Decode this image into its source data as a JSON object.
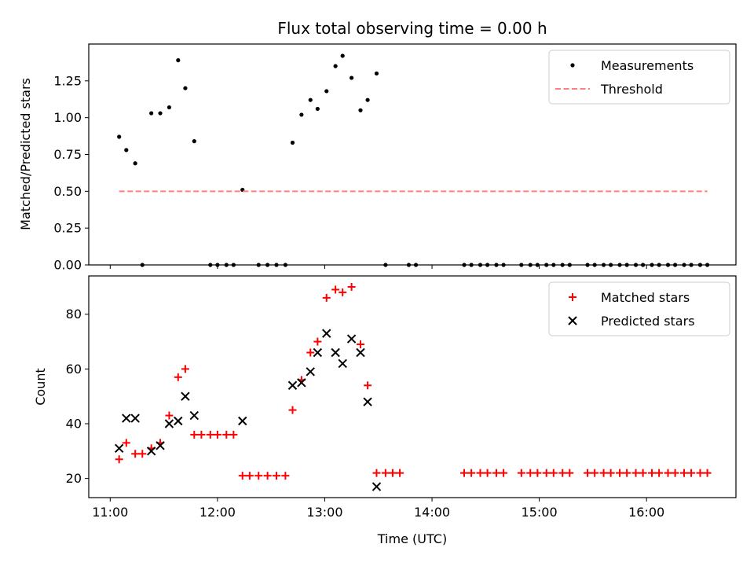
{
  "chart_data": [
    {
      "type": "scatter",
      "title": "Flux total observing time = 0.00 h",
      "xlabel": "",
      "ylabel": "Matched/Predicted stars",
      "xlim": [
        "10:48",
        "16:50"
      ],
      "ylim": [
        0,
        1.5
      ],
      "x_ticks": [
        "11:00",
        "12:00",
        "13:00",
        "14:00",
        "15:00",
        "16:00"
      ],
      "y_ticks": [
        "0.00",
        "0.25",
        "0.50",
        "0.75",
        "1.00",
        "1.25"
      ],
      "legend_position": "top-right",
      "series": [
        {
          "name": "Measurements",
          "marker": "dot",
          "color": "#000000",
          "x": [
            "11:05",
            "11:09",
            "11:14",
            "11:18",
            "11:23",
            "11:28",
            "11:33",
            "11:38",
            "11:42",
            "11:47",
            "11:56",
            "12:00",
            "12:05",
            "12:09",
            "12:14",
            "12:23",
            "12:28",
            "12:33",
            "12:38",
            "12:42",
            "12:47",
            "12:52",
            "12:56",
            "13:01",
            "13:06",
            "13:10",
            "13:15",
            "13:20",
            "13:24",
            "13:29",
            "13:34",
            "13:47",
            "13:51",
            "14:18",
            "14:22",
            "14:27",
            "14:31",
            "14:36",
            "14:40",
            "14:50",
            "14:55",
            "14:59",
            "15:04",
            "15:08",
            "15:13",
            "15:17",
            "15:27",
            "15:31",
            "15:36",
            "15:40",
            "15:45",
            "15:49",
            "15:54",
            "15:58",
            "16:03",
            "16:07",
            "16:12",
            "16:16",
            "16:21",
            "16:25",
            "16:30",
            "16:34"
          ],
          "y": [
            0.87,
            0.78,
            0.69,
            0.0,
            1.03,
            1.03,
            1.07,
            1.39,
            1.2,
            0.84,
            0.0,
            0.0,
            0.0,
            0.0,
            0.51,
            0.0,
            0.0,
            0.0,
            0.0,
            0.83,
            1.02,
            1.12,
            1.06,
            1.18,
            1.35,
            1.42,
            1.27,
            1.05,
            1.12,
            1.3,
            0.0,
            0.0,
            0.0,
            0.0,
            0.0,
            0.0,
            0.0,
            0.0,
            0.0,
            0.0,
            0.0,
            0.0,
            0.0,
            0.0,
            0.0,
            0.0,
            0.0,
            0.0,
            0.0,
            0.0,
            0.0,
            0.0,
            0.0,
            0.0,
            0.0,
            0.0,
            0.0,
            0.0,
            0.0,
            0.0,
            0.0,
            0.0
          ]
        },
        {
          "name": "Threshold",
          "type": "line",
          "style": "dashed",
          "color": "#ff7f7f",
          "x": [
            "11:05",
            "16:34"
          ],
          "y": [
            0.5,
            0.5
          ]
        }
      ]
    },
    {
      "type": "scatter",
      "title": "",
      "xlabel": "Time (UTC)",
      "ylabel": "Count",
      "xlim": [
        "10:48",
        "16:50"
      ],
      "ylim": [
        13,
        94
      ],
      "x_ticks": [
        "11:00",
        "12:00",
        "13:00",
        "14:00",
        "15:00",
        "16:00"
      ],
      "y_ticks": [
        "20",
        "40",
        "60",
        "80"
      ],
      "legend_position": "top-right",
      "series": [
        {
          "name": "Matched stars",
          "marker": "plus",
          "color": "#ff0000",
          "x": [
            "11:05",
            "11:09",
            "11:14",
            "11:18",
            "11:23",
            "11:28",
            "11:33",
            "11:38",
            "11:42",
            "11:47",
            "11:51",
            "11:56",
            "12:00",
            "12:05",
            "12:09",
            "12:14",
            "12:18",
            "12:23",
            "12:28",
            "12:33",
            "12:38",
            "12:42",
            "12:47",
            "12:52",
            "12:56",
            "13:01",
            "13:06",
            "13:10",
            "13:15",
            "13:20",
            "13:24",
            "13:29",
            "13:34",
            "13:38",
            "13:42",
            "14:18",
            "14:22",
            "14:27",
            "14:31",
            "14:36",
            "14:40",
            "14:50",
            "14:55",
            "14:59",
            "15:04",
            "15:08",
            "15:13",
            "15:17",
            "15:27",
            "15:31",
            "15:36",
            "15:40",
            "15:45",
            "15:49",
            "15:54",
            "15:58",
            "16:03",
            "16:07",
            "16:12",
            "16:16",
            "16:21",
            "16:25",
            "16:30",
            "16:34"
          ],
          "y": [
            27,
            33,
            29,
            29,
            31,
            33,
            43,
            57,
            60,
            36,
            36,
            36,
            36,
            36,
            36,
            21,
            21,
            21,
            21,
            21,
            21,
            45,
            56,
            66,
            70,
            86,
            89,
            88,
            90,
            69,
            54,
            22,
            22,
            22,
            22,
            22,
            22,
            22,
            22,
            22,
            22,
            22,
            22,
            22,
            22,
            22,
            22,
            22,
            22,
            22,
            22,
            22,
            22,
            22,
            22,
            22,
            22,
            22,
            22,
            22,
            22,
            22,
            22,
            22
          ]
        },
        {
          "name": "Predicted stars",
          "marker": "x",
          "color": "#000000",
          "x": [
            "11:05",
            "11:09",
            "11:14",
            "11:23",
            "11:28",
            "11:33",
            "11:38",
            "11:42",
            "11:47",
            "12:14",
            "12:42",
            "12:47",
            "12:52",
            "12:56",
            "13:01",
            "13:06",
            "13:10",
            "13:15",
            "13:20",
            "13:24",
            "13:29"
          ],
          "y": [
            31,
            42,
            42,
            30,
            32,
            40,
            41,
            50,
            43,
            41,
            54,
            55,
            59,
            66,
            73,
            66,
            62,
            71,
            66,
            48,
            17
          ]
        }
      ]
    }
  ]
}
